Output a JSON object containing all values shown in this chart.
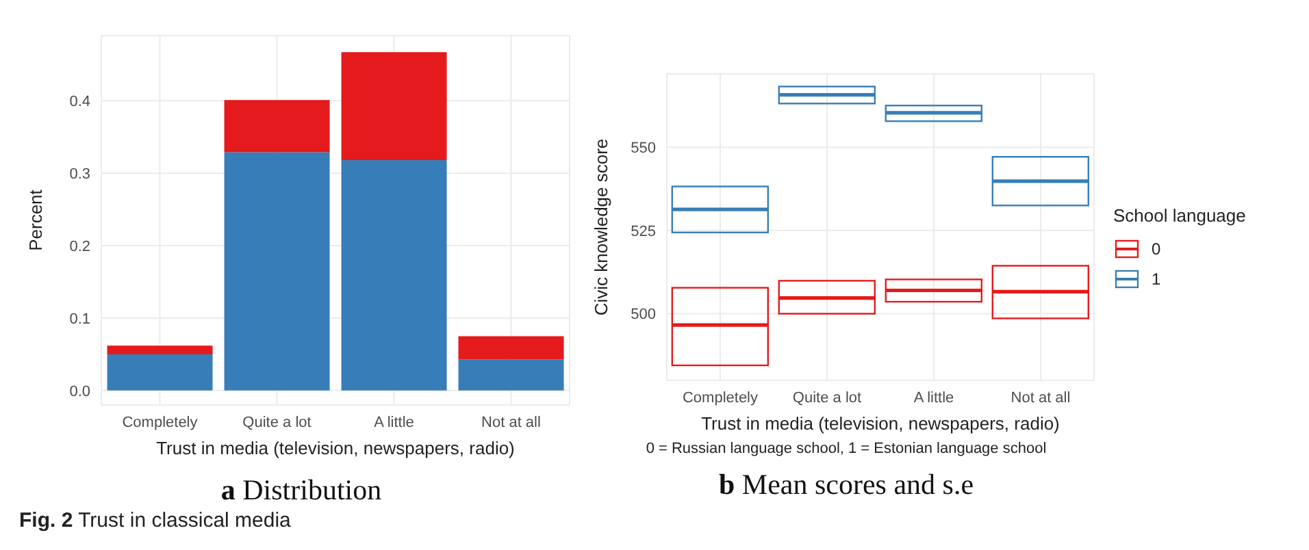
{
  "chart_data": [
    {
      "type": "bar",
      "title": "a Distribution",
      "xlabel": "Trust in media (television, newspapers, radio)",
      "ylabel": "Percent",
      "categories": [
        "Completely",
        "Quite a lot",
        "A little",
        "Not at all"
      ],
      "stacked": true,
      "series": [
        {
          "color": "#377eb8",
          "values": [
            0.05,
            0.329,
            0.318,
            0.043
          ]
        },
        {
          "color": "#e41a1c",
          "values": [
            0.012,
            0.072,
            0.149,
            0.032
          ]
        }
      ],
      "ylim": [
        -0.02,
        0.49
      ],
      "yticks": [
        {
          "value": 0,
          "label": "0.0"
        },
        0.1,
        0.2,
        0.3,
        0.4
      ],
      "grid": true,
      "legend": false,
      "annotations": [
        "Fig. 2 Trust in classical media"
      ]
    },
    {
      "type": "box",
      "title": "b Mean scores and s.e",
      "xlabel": "Trust in media (television, newspapers, radio)",
      "ylabel": "Civic knowledge score",
      "legend_title": "School language",
      "categories": [
        "Completely",
        "Quite a lot",
        "A little",
        "Not at all"
      ],
      "series": [
        {
          "name": "0",
          "color": "#e41a1c",
          "boxes": [
            {
              "low": 484.5,
              "q1": 484.5,
              "median": 496.6,
              "q3": 507.8,
              "high": 507.8
            },
            {
              "low": 500,
              "q1": 500,
              "median": 504.7,
              "q3": 509.9,
              "high": 509.9
            },
            {
              "low": 503.6,
              "q1": 503.6,
              "median": 507,
              "q3": 510.3,
              "high": 510.3
            },
            {
              "low": 498.6,
              "q1": 498.6,
              "median": 506.6,
              "q3": 514.4,
              "high": 514.4
            }
          ]
        },
        {
          "name": "1",
          "color": "#377eb8",
          "boxes": [
            {
              "low": 524.4,
              "q1": 524.4,
              "median": 531.3,
              "q3": 538.2,
              "high": 538.2
            },
            {
              "low": 563.1,
              "q1": 563.1,
              "median": 565.7,
              "q3": 568.2,
              "high": 568.2
            },
            {
              "low": 557.8,
              "q1": 557.8,
              "median": 560.3,
              "q3": 562.5,
              "high": 562.5
            },
            {
              "low": 532.5,
              "q1": 532.5,
              "median": 539.8,
              "q3": 547.1,
              "high": 547.1
            }
          ]
        }
      ],
      "ylim": [
        480,
        572
      ],
      "yticks": [
        500,
        525,
        550
      ],
      "grid": true,
      "legend": "right",
      "annotations": [
        "0 = Russian language school, 1 = Estonian language school"
      ]
    }
  ]
}
